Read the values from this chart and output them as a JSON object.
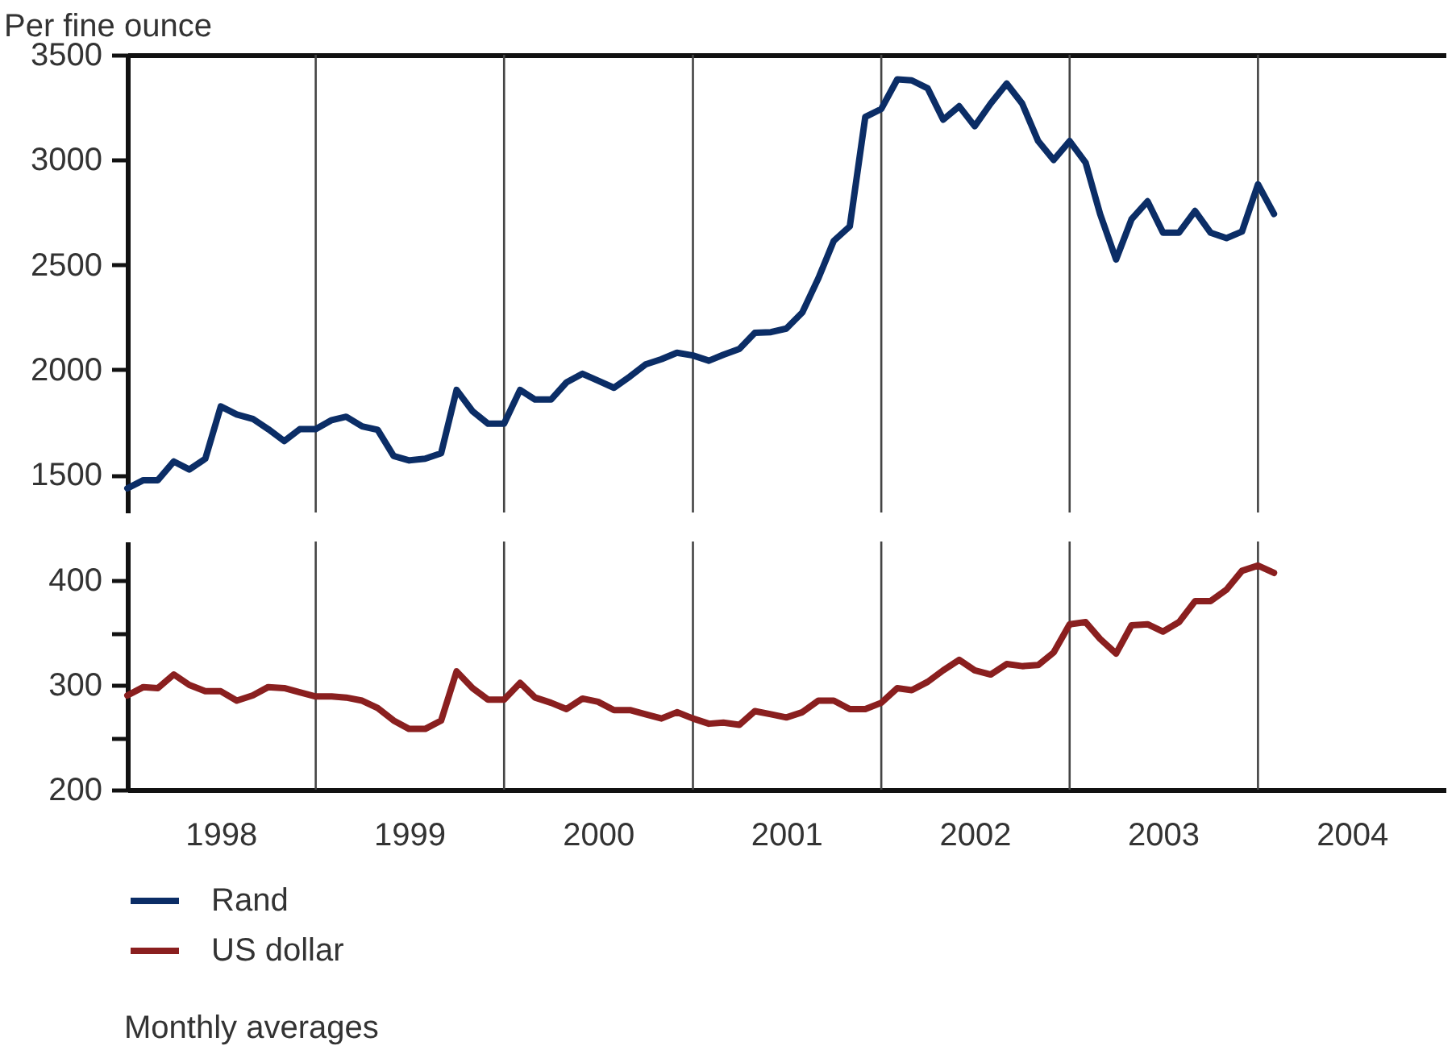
{
  "chart_data": [
    {
      "type": "line",
      "ylabel": "Per fine ounce",
      "xlim": [
        "1998-01-01",
        "2004-12-31"
      ],
      "ylim": [
        1320,
        3500
      ],
      "yticks": [
        1500,
        2000,
        2500,
        3000,
        3500
      ],
      "tick_labels": "y",
      "x": [
        "1998-01",
        "1998-02",
        "1998-03",
        "1998-04",
        "1998-05",
        "1998-06",
        "1998-07",
        "1998-08",
        "1998-09",
        "1998-10",
        "1998-11",
        "1998-12",
        "1999-01",
        "1999-02",
        "1999-03",
        "1999-04",
        "1999-05",
        "1999-06",
        "1999-07",
        "1999-08",
        "1999-09",
        "1999-10",
        "1999-11",
        "1999-12",
        "2000-01",
        "2000-02",
        "2000-03",
        "2000-04",
        "2000-05",
        "2000-06",
        "2000-07",
        "2000-08",
        "2000-09",
        "2000-10",
        "2000-11",
        "2000-12",
        "2001-01",
        "2001-02",
        "2001-03",
        "2001-04",
        "2001-05",
        "2001-06",
        "2001-07",
        "2001-08",
        "2001-09",
        "2001-10",
        "2001-11",
        "2001-12",
        "2002-01",
        "2002-02",
        "2002-03",
        "2002-04",
        "2002-05",
        "2002-06",
        "2002-07",
        "2002-08",
        "2002-09",
        "2002-10",
        "2002-11",
        "2002-12",
        "2003-01",
        "2003-02",
        "2003-03",
        "2003-04",
        "2003-05",
        "2003-06",
        "2003-07",
        "2003-08",
        "2003-09",
        "2003-10",
        "2003-11",
        "2003-12",
        "2004-01",
        "2004-02"
      ],
      "series": [
        {
          "name": "Rand",
          "color": "#0b2d66",
          "values": [
            1435,
            1474,
            1474,
            1563,
            1525,
            1576,
            1825,
            1787,
            1766,
            1717,
            1660,
            1717,
            1717,
            1760,
            1776,
            1730,
            1714,
            1589,
            1568,
            1576,
            1602,
            1904,
            1802,
            1743,
            1743,
            1904,
            1858,
            1858,
            1940,
            1981,
            1948,
            1914,
            1968,
            2025,
            2050,
            2081,
            2068,
            2043,
            2071,
            2099,
            2176,
            2179,
            2196,
            2273,
            2435,
            2614,
            2683,
            3204,
            3242,
            3383,
            3378,
            3340,
            3191,
            3255,
            3160,
            3268,
            3363,
            3268,
            3089,
            2999,
            3089,
            2986,
            2742,
            2525,
            2717,
            2802,
            2653,
            2653,
            2756,
            2653,
            2627,
            2658,
            2883,
            2742
          ]
        }
      ],
      "ref_lines": [
        {
          "axis": "x",
          "value": "1999-01-01"
        },
        {
          "axis": "x",
          "value": "2000-01-01"
        },
        {
          "axis": "x",
          "value": "2001-01-01"
        },
        {
          "axis": "x",
          "value": "2002-01-01"
        },
        {
          "axis": "x",
          "value": "2003-01-01"
        },
        {
          "axis": "x",
          "value": "2004-01-01"
        }
      ]
    },
    {
      "type": "line",
      "xlim": [
        "1998-01-01",
        "2004-12-31"
      ],
      "ylim": [
        200,
        437
      ],
      "yticks": [
        200,
        {
          "value": 250,
          "label": null
        },
        300,
        {
          "value": 350,
          "label": null
        },
        400
      ],
      "xticks": [
        {
          "value": "1998-07-01",
          "label": "1998"
        },
        {
          "value": "1999-07-01",
          "label": "1999"
        },
        {
          "value": "2000-07-01",
          "label": "2000"
        },
        {
          "value": "2001-07-01",
          "label": "2001"
        },
        {
          "value": "2002-07-01",
          "label": "2002"
        },
        {
          "value": "2003-07-01",
          "label": "2003"
        },
        {
          "value": "2004-07-01",
          "label": "2004"
        }
      ],
      "x": [
        "1998-01",
        "1998-02",
        "1998-03",
        "1998-04",
        "1998-05",
        "1998-06",
        "1998-07",
        "1998-08",
        "1998-09",
        "1998-10",
        "1998-11",
        "1998-12",
        "1999-01",
        "1999-02",
        "1999-03",
        "1999-04",
        "1999-05",
        "1999-06",
        "1999-07",
        "1999-08",
        "1999-09",
        "1999-10",
        "1999-11",
        "1999-12",
        "2000-01",
        "2000-02",
        "2000-03",
        "2000-04",
        "2000-05",
        "2000-06",
        "2000-07",
        "2000-08",
        "2000-09",
        "2000-10",
        "2000-11",
        "2000-12",
        "2001-01",
        "2001-02",
        "2001-03",
        "2001-04",
        "2001-05",
        "2001-06",
        "2001-07",
        "2001-08",
        "2001-09",
        "2001-10",
        "2001-11",
        "2001-12",
        "2002-01",
        "2002-02",
        "2002-03",
        "2002-04",
        "2002-05",
        "2002-06",
        "2002-07",
        "2002-08",
        "2002-09",
        "2002-10",
        "2002-11",
        "2002-12",
        "2003-01",
        "2003-02",
        "2003-03",
        "2003-04",
        "2003-05",
        "2003-06",
        "2003-07",
        "2003-08",
        "2003-09",
        "2003-10",
        "2003-11",
        "2003-12",
        "2004-01",
        "2004-02"
      ],
      "series": [
        {
          "name": "US dollar",
          "color": "#8a1f1f",
          "values": [
            290,
            298,
            297,
            310,
            300,
            294,
            294,
            285,
            290,
            298,
            297,
            293,
            289,
            289,
            288,
            285,
            278,
            266,
            258,
            258,
            266,
            313,
            297,
            286,
            286,
            302,
            288,
            283,
            277,
            287,
            284,
            276,
            276,
            272,
            268,
            274,
            268,
            263,
            264,
            262,
            275,
            272,
            269,
            274,
            285,
            285,
            277,
            277,
            283,
            297,
            295,
            303,
            314,
            324,
            314,
            310,
            320,
            318,
            319,
            331,
            358,
            360,
            344,
            330,
            357,
            358,
            351,
            360,
            380,
            380,
            391,
            409,
            414,
            407
          ]
        }
      ],
      "ref_lines": [
        {
          "axis": "x",
          "value": "1999-01-01"
        },
        {
          "axis": "x",
          "value": "2000-01-01"
        },
        {
          "axis": "x",
          "value": "2001-01-01"
        },
        {
          "axis": "x",
          "value": "2002-01-01"
        },
        {
          "axis": "x",
          "value": "2003-01-01"
        },
        {
          "axis": "x",
          "value": "2004-01-01"
        }
      ],
      "legend": "bottom",
      "annotations": [
        "Monthly averages"
      ]
    }
  ]
}
